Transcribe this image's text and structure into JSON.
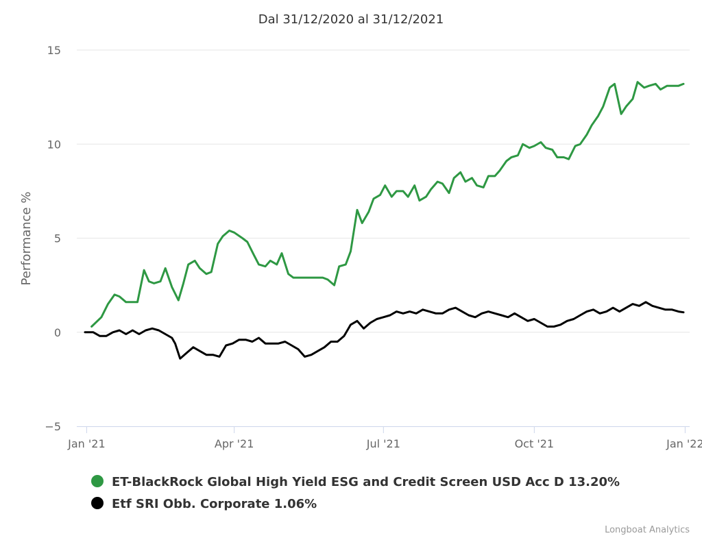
{
  "chart_data": {
    "type": "line",
    "title": "Dal 31/12/2020 al 31/12/2021",
    "ylabel": "Performance %",
    "xlabel": "",
    "x_range": [
      "2020-12-31",
      "2021-12-31"
    ],
    "ylim": [
      -5,
      15
    ],
    "y_ticks": [
      "−5",
      "0",
      "5",
      "10",
      "15"
    ],
    "y_tick_values": [
      -5,
      0,
      5,
      10,
      15
    ],
    "x_ticks": [
      {
        "label": "Jan '21",
        "date": "2021-01-01"
      },
      {
        "label": "Apr '21",
        "date": "2021-04-01"
      },
      {
        "label": "Jul '21",
        "date": "2021-07-01"
      },
      {
        "label": "Oct '21",
        "date": "2021-10-01"
      },
      {
        "label": "Jan '22",
        "date": "2022-01-01"
      }
    ],
    "grid": true,
    "legend_position": "bottom",
    "series": [
      {
        "name": "ET-BlackRock Global High Yield ESG and Credit Screen USD Acc D 13.20%",
        "color": "#2e9843",
        "x": [
          "2021-01-04",
          "2021-01-10",
          "2021-01-14",
          "2021-01-18",
          "2021-01-21",
          "2021-01-25",
          "2021-02-01",
          "2021-02-05",
          "2021-02-08",
          "2021-02-11",
          "2021-02-15",
          "2021-02-18",
          "2021-02-22",
          "2021-02-26",
          "2021-03-01",
          "2021-03-04",
          "2021-03-08",
          "2021-03-11",
          "2021-03-15",
          "2021-03-18",
          "2021-03-22",
          "2021-03-25",
          "2021-03-29",
          "2021-04-01",
          "2021-04-06",
          "2021-04-09",
          "2021-04-13",
          "2021-04-16",
          "2021-04-20",
          "2021-04-23",
          "2021-04-27",
          "2021-04-30",
          "2021-05-04",
          "2021-05-07",
          "2021-05-11",
          "2021-05-14",
          "2021-05-18",
          "2021-05-21",
          "2021-05-25",
          "2021-05-28",
          "2021-06-01",
          "2021-06-04",
          "2021-06-08",
          "2021-06-11",
          "2021-06-15",
          "2021-06-18",
          "2021-06-22",
          "2021-06-25",
          "2021-06-29",
          "2021-07-02",
          "2021-07-06",
          "2021-07-09",
          "2021-07-13",
          "2021-07-16",
          "2021-07-20",
          "2021-07-23",
          "2021-07-27",
          "2021-07-30",
          "2021-08-03",
          "2021-08-06",
          "2021-08-10",
          "2021-08-13",
          "2021-08-17",
          "2021-08-20",
          "2021-08-24",
          "2021-08-27",
          "2021-08-31",
          "2021-09-03",
          "2021-09-07",
          "2021-09-10",
          "2021-09-14",
          "2021-09-17",
          "2021-09-21",
          "2021-09-24",
          "2021-09-28",
          "2021-10-01",
          "2021-10-05",
          "2021-10-08",
          "2021-10-12",
          "2021-10-15",
          "2021-10-19",
          "2021-10-22",
          "2021-10-26",
          "2021-10-29",
          "2021-11-02",
          "2021-11-05",
          "2021-11-09",
          "2021-11-12",
          "2021-11-16",
          "2021-11-19",
          "2021-11-23",
          "2021-11-26",
          "2021-11-30",
          "2021-12-03",
          "2021-12-07",
          "2021-12-10",
          "2021-12-14",
          "2021-12-17",
          "2021-12-21",
          "2021-12-24",
          "2021-12-28",
          "2021-12-31"
        ],
        "values": [
          0.3,
          0.8,
          1.5,
          2.0,
          1.9,
          1.6,
          1.6,
          3.3,
          2.7,
          2.6,
          2.7,
          3.4,
          2.4,
          1.7,
          2.6,
          3.6,
          3.8,
          3.4,
          3.1,
          3.2,
          4.7,
          5.1,
          5.4,
          5.3,
          5.0,
          4.8,
          4.1,
          3.6,
          3.5,
          3.8,
          3.6,
          4.2,
          3.1,
          2.9,
          2.9,
          2.9,
          2.9,
          2.9,
          2.9,
          2.8,
          2.5,
          3.5,
          3.6,
          4.3,
          6.5,
          5.8,
          6.4,
          7.1,
          7.3,
          7.8,
          7.2,
          7.5,
          7.5,
          7.2,
          7.8,
          7.0,
          7.2,
          7.6,
          8.0,
          7.9,
          7.4,
          8.2,
          8.5,
          8.0,
          8.2,
          7.8,
          7.7,
          8.3,
          8.3,
          8.6,
          9.1,
          9.3,
          9.4,
          10.0,
          9.8,
          9.9,
          10.1,
          9.8,
          9.7,
          9.3,
          9.3,
          9.2,
          9.9,
          10.0,
          10.5,
          11.0,
          11.5,
          12.0,
          13.0,
          13.2,
          11.6,
          12.0,
          12.4,
          13.3,
          13.0,
          13.1,
          13.2,
          12.9,
          13.1,
          13.1,
          13.1,
          13.2
        ]
      },
      {
        "name": "Etf SRI Obb. Corporate 1.06%",
        "color": "#000000",
        "x": [
          "2020-12-31",
          "2021-01-05",
          "2021-01-09",
          "2021-01-13",
          "2021-01-17",
          "2021-01-21",
          "2021-01-25",
          "2021-01-29",
          "2021-02-02",
          "2021-02-06",
          "2021-02-10",
          "2021-02-14",
          "2021-02-18",
          "2021-02-22",
          "2021-02-24",
          "2021-02-27",
          "2021-03-03",
          "2021-03-07",
          "2021-03-11",
          "2021-03-15",
          "2021-03-19",
          "2021-03-23",
          "2021-03-27",
          "2021-03-31",
          "2021-04-04",
          "2021-04-08",
          "2021-04-12",
          "2021-04-16",
          "2021-04-20",
          "2021-04-24",
          "2021-04-28",
          "2021-05-02",
          "2021-05-06",
          "2021-05-10",
          "2021-05-14",
          "2021-05-18",
          "2021-05-22",
          "2021-05-26",
          "2021-05-30",
          "2021-06-03",
          "2021-06-07",
          "2021-06-11",
          "2021-06-15",
          "2021-06-19",
          "2021-06-23",
          "2021-06-27",
          "2021-07-01",
          "2021-07-05",
          "2021-07-09",
          "2021-07-13",
          "2021-07-17",
          "2021-07-21",
          "2021-07-25",
          "2021-07-29",
          "2021-08-02",
          "2021-08-06",
          "2021-08-10",
          "2021-08-14",
          "2021-08-18",
          "2021-08-22",
          "2021-08-26",
          "2021-08-30",
          "2021-09-03",
          "2021-09-07",
          "2021-09-11",
          "2021-09-15",
          "2021-09-19",
          "2021-09-23",
          "2021-09-27",
          "2021-10-01",
          "2021-10-05",
          "2021-10-09",
          "2021-10-13",
          "2021-10-17",
          "2021-10-21",
          "2021-10-25",
          "2021-10-29",
          "2021-11-02",
          "2021-11-06",
          "2021-11-10",
          "2021-11-14",
          "2021-11-18",
          "2021-11-22",
          "2021-11-26",
          "2021-11-30",
          "2021-12-04",
          "2021-12-08",
          "2021-12-12",
          "2021-12-16",
          "2021-12-20",
          "2021-12-24",
          "2021-12-28",
          "2021-12-31"
        ],
        "values": [
          0.0,
          0.0,
          -0.2,
          -0.2,
          0.0,
          0.1,
          -0.1,
          0.1,
          -0.1,
          0.1,
          0.2,
          0.1,
          -0.1,
          -0.3,
          -0.6,
          -1.4,
          -1.1,
          -0.8,
          -1.0,
          -1.2,
          -1.2,
          -1.3,
          -0.7,
          -0.6,
          -0.4,
          -0.4,
          -0.5,
          -0.3,
          -0.6,
          -0.6,
          -0.6,
          -0.5,
          -0.7,
          -0.9,
          -1.3,
          -1.2,
          -1.0,
          -0.8,
          -0.5,
          -0.5,
          -0.2,
          0.4,
          0.6,
          0.2,
          0.5,
          0.7,
          0.8,
          0.9,
          1.1,
          1.0,
          1.1,
          1.0,
          1.2,
          1.1,
          1.0,
          1.0,
          1.2,
          1.3,
          1.1,
          0.9,
          0.8,
          1.0,
          1.1,
          1.0,
          0.9,
          0.8,
          1.0,
          0.8,
          0.6,
          0.7,
          0.5,
          0.3,
          0.3,
          0.4,
          0.6,
          0.7,
          0.9,
          1.1,
          1.2,
          1.0,
          1.1,
          1.3,
          1.1,
          1.3,
          1.5,
          1.4,
          1.6,
          1.4,
          1.3,
          1.2,
          1.2,
          1.1,
          1.06
        ]
      }
    ]
  },
  "credits": "Longboat Analytics"
}
